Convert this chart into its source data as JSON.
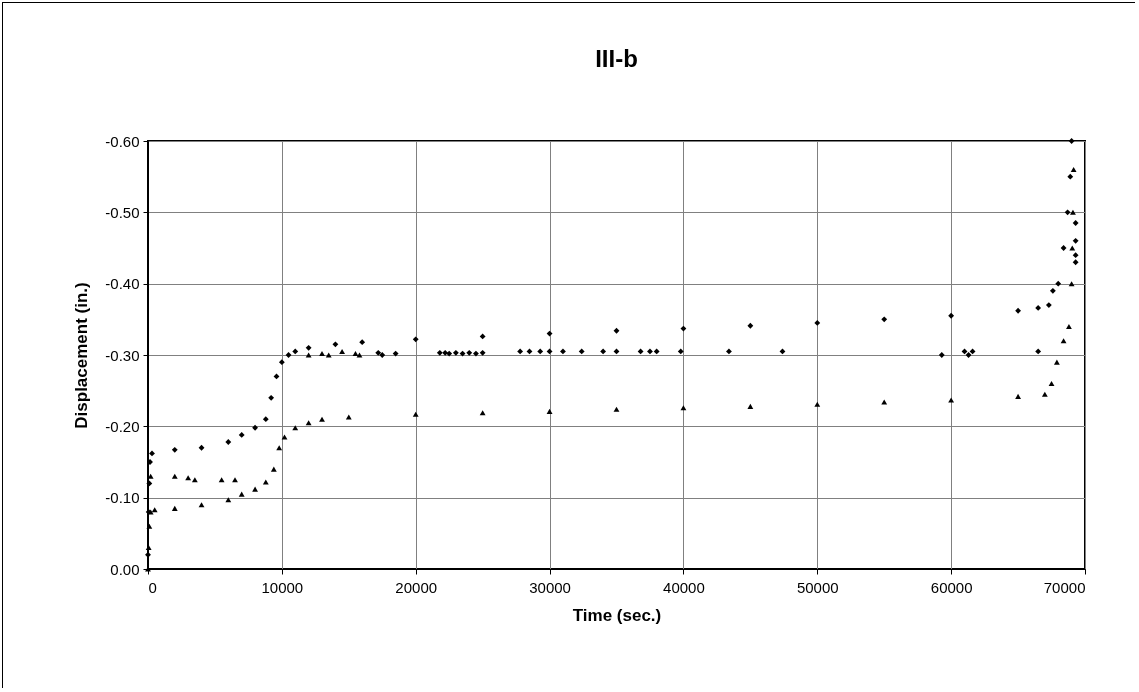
{
  "chart_data": {
    "type": "scatter",
    "title": "III-b",
    "xlabel": "Time (sec.)",
    "ylabel": "Displacement (in.)",
    "xlim": [
      0,
      70000
    ],
    "xticks": [
      0,
      10000,
      20000,
      30000,
      40000,
      50000,
      60000,
      70000
    ],
    "ylim": [
      0,
      -0.6
    ],
    "yticks": [
      {
        "value": 0,
        "label": "0.00"
      },
      {
        "value": -0.1,
        "label": "-0.10"
      },
      {
        "value": -0.2,
        "label": "-0.20"
      },
      {
        "value": -0.3,
        "label": "-0.30"
      },
      {
        "value": -0.4,
        "label": "-0.40"
      },
      {
        "value": -0.5,
        "label": "-0.50"
      },
      {
        "value": -0.6,
        "label": "-0.60"
      }
    ],
    "grid": true,
    "series": [
      {
        "color": "#000000",
        "marker": "diamond",
        "x": [
          0,
          50,
          100,
          150,
          300,
          2000,
          4000,
          6000,
          7000,
          8000,
          8800,
          9200,
          9600,
          10000,
          10500,
          11000,
          12000,
          14000,
          16000,
          17200,
          17500,
          18500,
          20000,
          21800,
          22200,
          22500,
          23000,
          23500,
          24000,
          24500,
          25000,
          25000,
          27800,
          28500,
          29300,
          30000,
          30000,
          31000,
          32400,
          34000,
          35000,
          35000,
          36800,
          37500,
          38000,
          39800,
          40000,
          43400,
          45000,
          47400,
          50000,
          55000,
          59300,
          60000,
          61000,
          61300,
          61600,
          65000,
          66500,
          66500,
          67300,
          67600,
          68000,
          68400,
          68700,
          68900,
          69000,
          69300,
          69300,
          69300,
          69300
        ],
        "values": [
          -0.02,
          -0.08,
          -0.12,
          -0.15,
          -0.162,
          -0.167,
          -0.17,
          -0.178,
          -0.188,
          -0.198,
          -0.21,
          -0.24,
          -0.27,
          -0.29,
          -0.3,
          -0.305,
          -0.31,
          -0.315,
          -0.318,
          -0.303,
          -0.3,
          -0.302,
          -0.322,
          -0.303,
          -0.303,
          -0.302,
          -0.303,
          -0.302,
          -0.303,
          -0.302,
          -0.326,
          -0.303,
          -0.305,
          -0.305,
          -0.305,
          -0.33,
          -0.305,
          -0.305,
          -0.305,
          -0.305,
          -0.334,
          -0.305,
          -0.305,
          -0.305,
          -0.305,
          -0.305,
          -0.337,
          -0.305,
          -0.341,
          -0.305,
          -0.345,
          -0.35,
          -0.3,
          -0.355,
          -0.305,
          -0.3,
          -0.305,
          -0.362,
          -0.305,
          -0.366,
          -0.37,
          -0.39,
          -0.4,
          -0.45,
          -0.5,
          -0.55,
          -0.6,
          -0.485,
          -0.46,
          -0.44,
          -0.43
        ]
      },
      {
        "color": "#000000",
        "marker": "triangle",
        "x": [
          0,
          50,
          100,
          200,
          200,
          500,
          2000,
          2000,
          3000,
          3500,
          4000,
          5500,
          6000,
          6500,
          7000,
          8000,
          8800,
          9400,
          9800,
          10200,
          11000,
          12000,
          12000,
          13000,
          13000,
          13500,
          14500,
          15000,
          15500,
          15800,
          20000,
          25000,
          30000,
          35000,
          40000,
          45000,
          50000,
          55000,
          60000,
          65000,
          67000,
          67500,
          67900,
          68400,
          68800,
          69000,
          69050,
          69100,
          69150
        ],
        "values": [
          0,
          -0.03,
          -0.06,
          -0.08,
          -0.13,
          -0.083,
          -0.085,
          -0.13,
          -0.128,
          -0.125,
          -0.09,
          -0.125,
          -0.097,
          -0.125,
          -0.105,
          -0.112,
          -0.122,
          -0.14,
          -0.17,
          -0.185,
          -0.198,
          -0.205,
          -0.3,
          -0.21,
          -0.302,
          -0.3,
          -0.305,
          -0.213,
          -0.302,
          -0.3,
          -0.217,
          -0.219,
          -0.221,
          -0.224,
          -0.226,
          -0.228,
          -0.231,
          -0.234,
          -0.237,
          -0.242,
          -0.245,
          -0.26,
          -0.29,
          -0.32,
          -0.34,
          -0.4,
          -0.45,
          -0.5,
          -0.56
        ]
      }
    ]
  }
}
